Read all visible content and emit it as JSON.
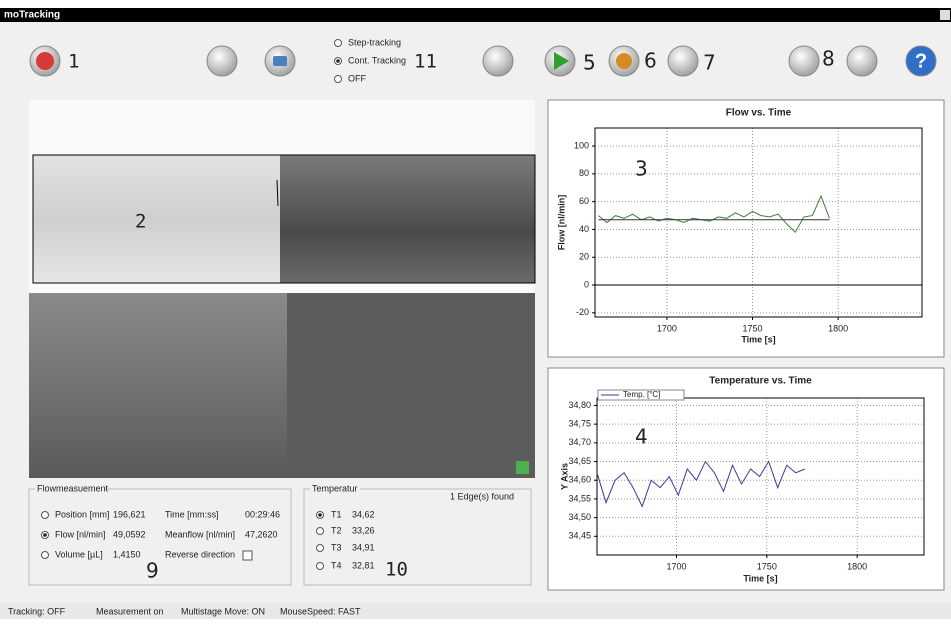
{
  "window": {
    "title": "moTracking"
  },
  "toolbar": {
    "labels": [
      "1",
      "5",
      "6",
      "7",
      "8"
    ],
    "tracking_mode": {
      "options": [
        "Step-tracking",
        "Cont. Tracking",
        "OFF"
      ],
      "selected": 1,
      "label": "11"
    }
  },
  "image": {
    "label": "2"
  },
  "flow_panel": {
    "title": "Flowmeasuement",
    "selected": 1,
    "label": "9",
    "rows": [
      [
        "Position [mm]",
        "196,621",
        "Time [mm:ss]",
        "00:29:46"
      ],
      [
        "Flow [nl/min]",
        "49,0592",
        "Meanflow [nl/min]",
        "47,2620"
      ],
      [
        "Volume [µL]",
        "1,4150",
        "Reverse direction"
      ]
    ]
  },
  "temp_panel": {
    "title": "Temperatur",
    "status": "1 Edge(s) found",
    "selected": 0,
    "label": "10",
    "rows": [
      [
        "T1",
        "34,62"
      ],
      [
        "T2",
        "33,26"
      ],
      [
        "T3",
        "34,91"
      ],
      [
        "T4",
        "32,81"
      ]
    ]
  },
  "status_bar": [
    "Tracking: OFF",
    "Measurement on",
    "Multistage Move: ON",
    "MouseSpeed: FAST"
  ],
  "chart_data": [
    {
      "type": "line",
      "title": "Flow vs. Time",
      "xlabel": "Time [s]",
      "ylabel": "Flow [nl/min]",
      "annotation": "3",
      "xlim": [
        1658,
        1849
      ],
      "ylim": [
        -23,
        113
      ],
      "xticks": [
        1700,
        1750,
        1800
      ],
      "yticks": [
        -20,
        0,
        20,
        40,
        60,
        80,
        100
      ],
      "grid": true,
      "series": [
        {
          "color": "#3d7a3d",
          "x": [
            1660,
            1665,
            1670,
            1675,
            1680,
            1685,
            1690,
            1695,
            1700,
            1705,
            1710,
            1715,
            1720,
            1725,
            1730,
            1735,
            1740,
            1745,
            1750,
            1755,
            1760,
            1765,
            1770,
            1775,
            1780,
            1785,
            1790,
            1795
          ],
          "values": [
            50,
            45,
            50,
            48,
            51,
            47,
            49,
            46,
            48,
            47,
            45,
            48,
            47,
            46,
            49,
            48,
            52,
            49,
            53,
            50,
            49,
            51,
            44,
            38,
            49,
            50,
            64,
            48
          ]
        },
        {
          "color": "#333333",
          "x": [
            1660,
            1795
          ],
          "values": [
            47,
            47
          ]
        }
      ]
    },
    {
      "type": "line",
      "title": "Temperature vs. Time",
      "xlabel": "Time [s]",
      "ylabel": "Y Axis",
      "annotation": "4",
      "xlim": [
        1656,
        1837
      ],
      "ylim": [
        34.4,
        34.82
      ],
      "xticks": [
        1700,
        1750,
        1800
      ],
      "yticks": [
        {
          "value": 34.45,
          "label": "34,45"
        },
        {
          "value": 34.5,
          "label": "34,50"
        },
        {
          "value": 34.55,
          "label": "34,55"
        },
        {
          "value": 34.6,
          "label": "34,60"
        },
        {
          "value": 34.65,
          "label": "34,65"
        },
        {
          "value": 34.7,
          "label": "34,70"
        },
        {
          "value": 34.75,
          "label": "34,75"
        },
        {
          "value": 34.8,
          "label": "34,80"
        }
      ],
      "grid": true,
      "legend": "top-left",
      "series": [
        {
          "name": "Temp. [°C]",
          "color": "#3a3a9a",
          "x": [
            1656,
            1661,
            1666,
            1671,
            1676,
            1681,
            1686,
            1691,
            1696,
            1701,
            1706,
            1711,
            1716,
            1721,
            1726,
            1731,
            1736,
            1741,
            1746,
            1751,
            1756,
            1761,
            1766,
            1771
          ],
          "values": [
            34.62,
            34.54,
            34.6,
            34.62,
            34.58,
            34.53,
            34.6,
            34.58,
            34.61,
            34.56,
            34.63,
            34.6,
            34.65,
            34.62,
            34.57,
            34.64,
            34.59,
            34.63,
            34.61,
            34.65,
            34.58,
            34.64,
            34.62,
            34.63
          ]
        }
      ]
    }
  ]
}
